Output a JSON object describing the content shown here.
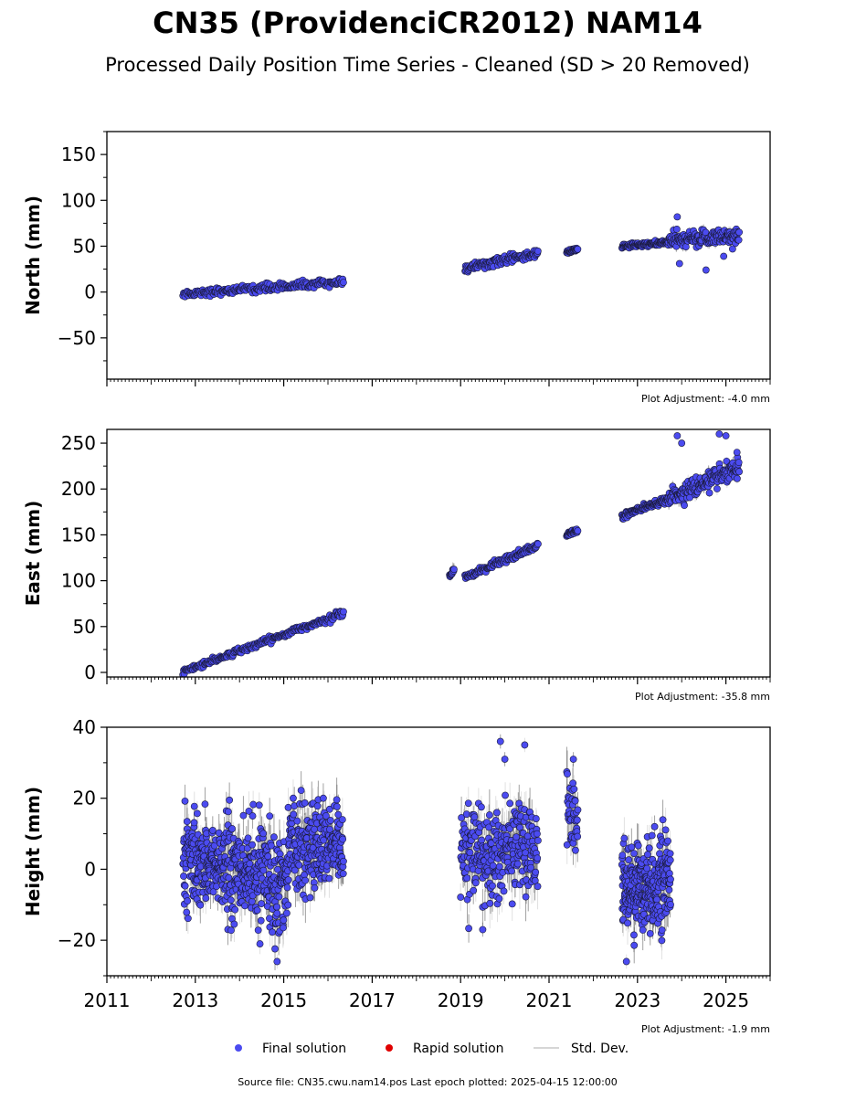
{
  "title": "CN35 (ProvidenciCR2012) NAM14",
  "subtitle": "Processed Daily Position Time Series - Cleaned (SD > 20 Removed)",
  "colors": {
    "final": "#4b4bf0",
    "rapid": "#e00000",
    "std": "#c8c8c8",
    "std_dark": "#555555"
  },
  "legend": [
    {
      "key": "final",
      "label": "Final solution"
    },
    {
      "key": "rapid",
      "label": "Rapid solution"
    },
    {
      "key": "std",
      "label": "Std. Dev."
    }
  ],
  "footer": "Source file: CN35.cwu.nam14.pos  Last epoch plotted: 2025-04-15 12:00:00",
  "chart_data": [
    {
      "type": "scatter",
      "ylabel": "North (mm)",
      "xlim": [
        2011.0,
        2026.0
      ],
      "ylim": [
        -95,
        175
      ],
      "yticks": [
        -50,
        0,
        50,
        100,
        150
      ],
      "ytick_labels": [
        "−50",
        "0",
        "50",
        "100",
        "150"
      ],
      "adjustment": "Plot Adjustment: -4.0 mm",
      "segments": [
        {
          "t0": 2012.72,
          "t1": 2016.35,
          "y0": -2,
          "y1": 11,
          "noise": 2.0,
          "sd": 1.5,
          "n": 230
        },
        {
          "t0": 2019.1,
          "t1": 2020.75,
          "y0": 26,
          "y1": 42,
          "noise": 2.2,
          "sd": 2.0,
          "n": 130
        },
        {
          "t0": 2021.4,
          "t1": 2021.65,
          "y0": 44,
          "y1": 46,
          "noise": 1.2,
          "sd": 1.5,
          "n": 30
        },
        {
          "t0": 2022.65,
          "t1": 2023.7,
          "y0": 50,
          "y1": 54,
          "noise": 1.3,
          "sd": 1.5,
          "n": 110
        },
        {
          "t0": 2023.7,
          "t1": 2025.3,
          "y0": 55,
          "y1": 63,
          "noise": 4.5,
          "sd": 4.0,
          "n": 170
        }
      ],
      "outliers": [
        [
          2023.9,
          82
        ],
        [
          2023.95,
          31
        ],
        [
          2024.55,
          24
        ],
        [
          2024.95,
          39
        ],
        [
          2025.15,
          47
        ]
      ]
    },
    {
      "type": "scatter",
      "ylabel": "East (mm)",
      "xlim": [
        2011.0,
        2026.0
      ],
      "ylim": [
        -5,
        265
      ],
      "yticks": [
        0,
        50,
        100,
        150,
        200,
        250
      ],
      "ytick_labels": [
        "0",
        "50",
        "100",
        "150",
        "200",
        "250"
      ],
      "adjustment": "Plot Adjustment: -35.8 mm",
      "segments": [
        {
          "t0": 2012.72,
          "t1": 2016.35,
          "y0": 1,
          "y1": 65,
          "noise": 1.6,
          "sd": 1.5,
          "n": 260
        },
        {
          "t0": 2018.75,
          "t1": 2018.85,
          "y0": 106,
          "y1": 110,
          "noise": 2.0,
          "sd": 6.0,
          "n": 12
        },
        {
          "t0": 2019.1,
          "t1": 2020.75,
          "y0": 104,
          "y1": 138,
          "noise": 1.8,
          "sd": 2.0,
          "n": 130
        },
        {
          "t0": 2021.4,
          "t1": 2021.65,
          "y0": 150,
          "y1": 155,
          "noise": 1.5,
          "sd": 1.5,
          "n": 30
        },
        {
          "t0": 2022.65,
          "t1": 2023.7,
          "y0": 171,
          "y1": 189,
          "noise": 1.6,
          "sd": 1.5,
          "n": 110
        },
        {
          "t0": 2023.7,
          "t1": 2025.3,
          "y0": 190,
          "y1": 222,
          "noise": 5.0,
          "sd": 5.0,
          "n": 170
        }
      ],
      "outliers": [
        [
          2023.9,
          258
        ],
        [
          2024.0,
          250
        ],
        [
          2024.85,
          260
        ],
        [
          2025.0,
          258
        ],
        [
          2025.25,
          240
        ]
      ]
    },
    {
      "type": "scatter",
      "ylabel": "Height (mm)",
      "xlim": [
        2011.0,
        2026.0
      ],
      "ylim": [
        -30,
        40
      ],
      "yticks": [
        -20,
        0,
        20,
        40
      ],
      "ytick_labels": [
        "−20",
        "0",
        "20",
        "40"
      ],
      "adjustment": "Plot Adjustment: -1.9 mm",
      "xticks": [
        2011,
        2013,
        2015,
        2017,
        2019,
        2021,
        2023,
        2025
      ],
      "segments": [
        {
          "t0": 2012.72,
          "t1": 2014.2,
          "y0": 3,
          "y1": -1,
          "noise": 6.5,
          "sd": 4.0,
          "n": 320
        },
        {
          "t0": 2014.2,
          "t1": 2015.1,
          "y0": -2,
          "y1": -3,
          "noise": 7.0,
          "sd": 4.5,
          "n": 180
        },
        {
          "t0": 2015.1,
          "t1": 2016.35,
          "y0": 8,
          "y1": 5,
          "noise": 6.0,
          "sd": 4.5,
          "n": 240
        },
        {
          "t0": 2019.0,
          "t1": 2020.75,
          "y0": 3,
          "y1": 7,
          "noise": 6.5,
          "sd": 5.0,
          "n": 280
        },
        {
          "t0": 2021.4,
          "t1": 2021.65,
          "y0": 16,
          "y1": 12,
          "noise": 5.0,
          "sd": 5.0,
          "n": 40
        },
        {
          "t0": 2022.65,
          "t1": 2023.75,
          "y0": -5,
          "y1": -4,
          "noise": 6.0,
          "sd": 4.5,
          "n": 300
        }
      ],
      "outliers": [
        [
          2019.9,
          36
        ],
        [
          2020.0,
          31
        ],
        [
          2020.45,
          35
        ],
        [
          2021.55,
          31
        ],
        [
          2014.85,
          -26
        ],
        [
          2022.75,
          -26
        ],
        [
          2019.5,
          -17
        ]
      ]
    }
  ]
}
